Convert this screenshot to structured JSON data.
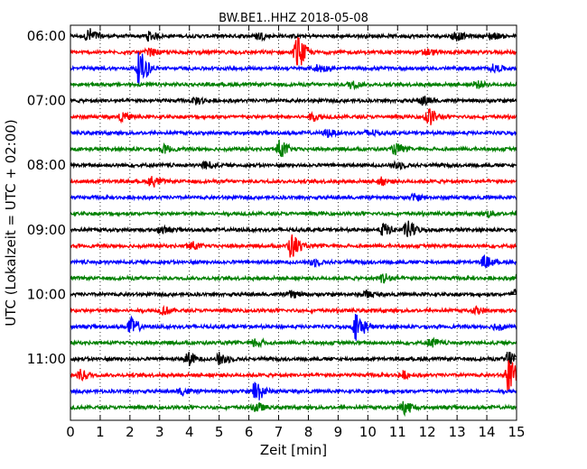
{
  "chart_data": {
    "type": "line",
    "title": "BW.BE1..HHZ 2018-05-08",
    "xlabel": "Zeit  [min]",
    "ylabel": "UTC (Lokalzeit = UTC + 02:00)",
    "xlim": [
      0,
      15
    ],
    "x_ticks": [
      0,
      1,
      2,
      3,
      4,
      5,
      6,
      7,
      8,
      9,
      10,
      11,
      12,
      13,
      14,
      15
    ],
    "y_tick_labels": [
      "06:00",
      "07:00",
      "08:00",
      "09:00",
      "10:00",
      "11:00"
    ],
    "grid": "vertical dotted lines at each minute",
    "trace_interval_minutes": 15,
    "color_cycle": [
      "#000000",
      "#ff0000",
      "#0000ff",
      "#008000"
    ],
    "traces": [
      {
        "start": "06:00",
        "color": "#000000",
        "events": [
          {
            "t": 0.6,
            "a": 0.45
          },
          {
            "t": 2.6,
            "a": 0.25
          },
          {
            "t": 6.3,
            "a": 0.2
          },
          {
            "t": 12.9,
            "a": 0.25
          },
          {
            "t": 14.1,
            "a": 0.2
          }
        ]
      },
      {
        "start": "06:15",
        "color": "#ff0000",
        "events": [
          {
            "t": 7.6,
            "a": 0.95
          },
          {
            "t": 2.6,
            "a": 0.2
          },
          {
            "t": 11.9,
            "a": 0.2
          }
        ]
      },
      {
        "start": "06:30",
        "color": "#0000ff",
        "events": [
          {
            "t": 2.3,
            "a": 0.95
          },
          {
            "t": 8.3,
            "a": 0.2
          },
          {
            "t": 14.2,
            "a": 0.2
          }
        ]
      },
      {
        "start": "06:45",
        "color": "#008000",
        "events": [
          {
            "t": 9.4,
            "a": 0.2
          },
          {
            "t": 13.6,
            "a": 0.2
          }
        ]
      },
      {
        "start": "07:00",
        "color": "#000000",
        "events": [
          {
            "t": 4.2,
            "a": 0.2
          },
          {
            "t": 11.8,
            "a": 0.25
          }
        ]
      },
      {
        "start": "07:15",
        "color": "#ff0000",
        "events": [
          {
            "t": 12.0,
            "a": 0.5
          },
          {
            "t": 1.7,
            "a": 0.2
          },
          {
            "t": 8.1,
            "a": 0.2
          }
        ]
      },
      {
        "start": "07:30",
        "color": "#0000ff",
        "events": [
          {
            "t": 8.6,
            "a": 0.2
          },
          {
            "t": 10.0,
            "a": 0.2
          }
        ]
      },
      {
        "start": "07:45",
        "color": "#008000",
        "events": [
          {
            "t": 7.0,
            "a": 0.5
          },
          {
            "t": 10.9,
            "a": 0.3
          },
          {
            "t": 3.1,
            "a": 0.2
          }
        ]
      },
      {
        "start": "08:00",
        "color": "#000000",
        "events": [
          {
            "t": 4.5,
            "a": 0.2
          },
          {
            "t": 10.9,
            "a": 0.2
          }
        ]
      },
      {
        "start": "08:15",
        "color": "#ff0000",
        "events": [
          {
            "t": 2.7,
            "a": 0.3
          },
          {
            "t": 10.4,
            "a": 0.2
          }
        ]
      },
      {
        "start": "08:30",
        "color": "#0000ff",
        "events": [
          {
            "t": 11.5,
            "a": 0.15
          }
        ]
      },
      {
        "start": "08:45",
        "color": "#008000",
        "events": [
          {
            "t": 14.0,
            "a": 0.15
          }
        ]
      },
      {
        "start": "09:00",
        "color": "#000000",
        "events": [
          {
            "t": 10.5,
            "a": 0.35
          },
          {
            "t": 11.3,
            "a": 0.5
          },
          {
            "t": 3.0,
            "a": 0.2
          }
        ]
      },
      {
        "start": "09:15",
        "color": "#ff0000",
        "events": [
          {
            "t": 7.4,
            "a": 0.7
          },
          {
            "t": 4.0,
            "a": 0.25
          }
        ]
      },
      {
        "start": "09:30",
        "color": "#0000ff",
        "events": [
          {
            "t": 8.1,
            "a": 0.2
          },
          {
            "t": 13.9,
            "a": 0.3
          }
        ]
      },
      {
        "start": "09:45",
        "color": "#008000",
        "events": [
          {
            "t": 10.5,
            "a": 0.3
          },
          {
            "t": 15.0,
            "a": 0.2
          }
        ]
      },
      {
        "start": "10:00",
        "color": "#000000",
        "events": [
          {
            "t": 14.9,
            "a": 0.3
          },
          {
            "t": 7.4,
            "a": 0.2
          },
          {
            "t": 9.9,
            "a": 0.2
          }
        ]
      },
      {
        "start": "10:15",
        "color": "#ff0000",
        "events": [
          {
            "t": 3.1,
            "a": 0.2
          },
          {
            "t": 13.6,
            "a": 0.2
          }
        ]
      },
      {
        "start": "10:30",
        "color": "#0000ff",
        "events": [
          {
            "t": 2.0,
            "a": 0.5
          },
          {
            "t": 9.6,
            "a": 0.8
          },
          {
            "t": 14.3,
            "a": 0.2
          }
        ]
      },
      {
        "start": "10:45",
        "color": "#008000",
        "events": [
          {
            "t": 6.2,
            "a": 0.25
          },
          {
            "t": 12.1,
            "a": 0.25
          }
        ]
      },
      {
        "start": "11:00",
        "color": "#000000",
        "events": [
          {
            "t": 3.9,
            "a": 0.4
          },
          {
            "t": 5.0,
            "a": 0.35
          },
          {
            "t": 14.7,
            "a": 0.5
          }
        ]
      },
      {
        "start": "11:15",
        "color": "#ff0000",
        "events": [
          {
            "t": 14.7,
            "a": 0.95
          },
          {
            "t": 0.3,
            "a": 0.3
          },
          {
            "t": 11.1,
            "a": 0.2
          }
        ]
      },
      {
        "start": "11:30",
        "color": "#0000ff",
        "events": [
          {
            "t": 6.2,
            "a": 0.65
          },
          {
            "t": 3.7,
            "a": 0.2
          }
        ]
      },
      {
        "start": "11:45",
        "color": "#008000",
        "events": [
          {
            "t": 11.2,
            "a": 0.4
          },
          {
            "t": 6.2,
            "a": 0.25
          }
        ]
      }
    ]
  }
}
